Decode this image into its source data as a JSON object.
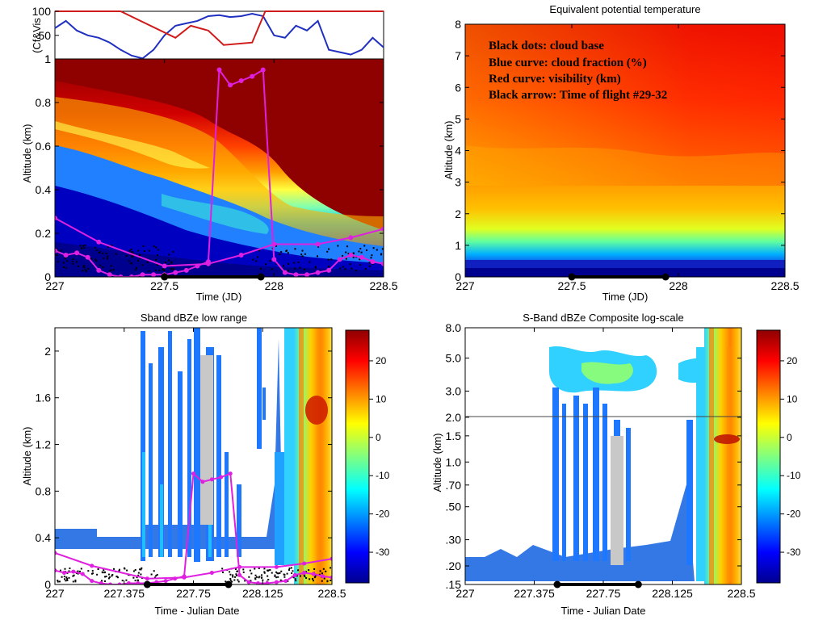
{
  "chart_data": [
    {
      "type": "heatmap",
      "panel": "top-left",
      "title": "",
      "xlabel": "Time (JD)",
      "ylabel": "Altitude (km)",
      "xlim": [
        227,
        228.5
      ],
      "ylim": [
        0,
        1
      ],
      "xticks": [
        "227",
        "227.5",
        "228",
        "228.5"
      ],
      "yticks": [
        "0",
        "0.2",
        "0.4",
        "0.6",
        "0.8",
        "1"
      ],
      "flight_window": [
        227.5,
        227.94
      ],
      "series": [
        {
          "values_x": [
            227.0,
            227.05,
            227.1,
            227.15,
            227.2,
            227.25,
            227.3,
            227.35,
            227.4,
            227.45,
            227.5,
            227.55,
            227.6,
            227.65,
            227.7,
            227.75,
            227.8,
            227.85,
            227.9,
            227.95,
            228.0,
            228.05,
            228.1,
            228.15,
            228.2,
            228.25,
            228.3,
            228.35,
            228.4,
            228.45,
            228.5
          ],
          "values_y": [
            0.12,
            0.1,
            0.11,
            0.09,
            0.03,
            0.01,
            0.0,
            0.0,
            0.01,
            0.01,
            0.01,
            0.02,
            0.03,
            0.05,
            0.07,
            0.95,
            0.88,
            0.9,
            0.92,
            0.95,
            0.08,
            0.02,
            0.01,
            0.01,
            0.02,
            0.03,
            0.08,
            0.1,
            0.09,
            0.07,
            0.06
          ]
        },
        {
          "values_x": [
            227.0,
            227.2,
            227.5,
            227.7,
            227.85,
            228.0,
            228.2,
            228.35,
            228.5
          ],
          "values_y": [
            0.27,
            0.16,
            0.05,
            0.06,
            0.1,
            0.15,
            0.15,
            0.18,
            0.22
          ]
        }
      ],
      "top_strip": {
        "ylabel": "(Cf&Vis",
        "ylim": [
          1,
          100
        ],
        "yticks": [
          "1",
          "50",
          "100"
        ],
        "series": [
          {
            "color": "#1f2fbf",
            "values_x": [
              227.0,
              227.05,
              227.1,
              227.15,
              227.2,
              227.25,
              227.3,
              227.35,
              227.4,
              227.45,
              227.5,
              227.55,
              227.6,
              227.65,
              227.7,
              227.75,
              227.8,
              227.85,
              227.9,
              227.95,
              228.0,
              228.05,
              228.1,
              228.15,
              228.2,
              228.25,
              228.3,
              228.35,
              228.4,
              228.45,
              228.5
            ],
            "values_y": [
              65,
              80,
              60,
              50,
              45,
              35,
              20,
              8,
              2,
              20,
              50,
              70,
              75,
              80,
              90,
              92,
              88,
              90,
              95,
              90,
              50,
              45,
              70,
              60,
              80,
              20,
              15,
              10,
              20,
              45,
              25
            ]
          },
          {
            "color": "#d01b1b",
            "values_x": [
              227.0,
              227.3,
              227.55,
              227.62,
              227.7,
              227.77,
              227.9,
              227.96,
              228.0,
              228.5
            ],
            "values_y": [
              100,
              100,
              45,
              70,
              60,
              30,
              35,
              100,
              100,
              100
            ]
          }
        ]
      }
    },
    {
      "type": "heatmap",
      "panel": "top-right",
      "title": "Equivalent potential temperature",
      "xlabel": "Time (JD)",
      "ylabel": "Altitude (km)",
      "xlim": [
        227,
        228.5
      ],
      "ylim": [
        0,
        8
      ],
      "xticks": [
        "227",
        "227.5",
        "228",
        "228.5"
      ],
      "yticks": [
        "0",
        "1",
        "2",
        "3",
        "4",
        "5",
        "6",
        "7",
        "8"
      ],
      "flight_window": [
        227.5,
        227.94
      ],
      "annotations": [
        "Black dots: cloud base",
        "Blue curve: cloud fraction (%)",
        "Red curve: visibility (km)",
        "Black arrow: Time of flight #29-32"
      ]
    },
    {
      "type": "heatmap",
      "panel": "bottom-left",
      "title": "Sband dBZe low range",
      "xlabel": "Time - Julian Date",
      "ylabel": "Altitude (km)",
      "xlim": [
        227,
        228.5
      ],
      "ylim": [
        0,
        2.2
      ],
      "xticks": [
        "227",
        "227.375",
        "227.75",
        "228.125",
        "228.5"
      ],
      "yticks": [
        "0",
        "0.4",
        "0.8",
        "1.2",
        "1.6",
        "2"
      ],
      "colorbar_ticks": [
        "20",
        "10",
        "0",
        "-10",
        "-20",
        "-30"
      ],
      "colorbar_range": [
        -38,
        28
      ],
      "flight_window": [
        227.5,
        227.94
      ]
    },
    {
      "type": "heatmap",
      "panel": "bottom-right",
      "title": "S-Band dBZe Composite log-scale",
      "xlabel": "Time - Julian Date",
      "ylabel": "Altitude (km)",
      "xlim": [
        227,
        228.5
      ],
      "ylim": [
        0.15,
        8.0
      ],
      "log_y": true,
      "xticks": [
        "227",
        "227.375",
        "227.75",
        "228.125",
        "228.5"
      ],
      "yticks": [
        ".15",
        ".20",
        ".30",
        ".50",
        ".70",
        "1.0",
        "1.5",
        "2.0",
        "3.0",
        "5.0",
        "8.0"
      ],
      "colorbar_ticks": [
        "20",
        "10",
        "0",
        "-10",
        "-20",
        "-30"
      ],
      "colorbar_range": [
        -38,
        28
      ],
      "flight_window": [
        227.5,
        227.94
      ]
    }
  ]
}
